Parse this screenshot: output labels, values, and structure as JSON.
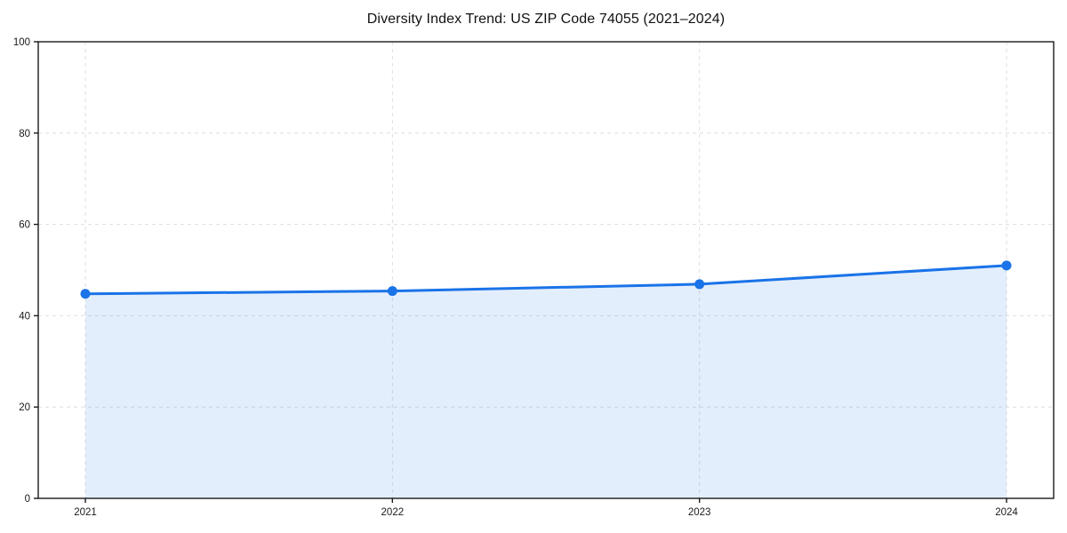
{
  "page": {
    "title": "Diversity Index Trend: US ZIP Code 74055 (2021–2024)"
  },
  "chart_data": {
    "type": "line",
    "title": "Diversity Index Trend: US ZIP Code 74055 (2021–2024)",
    "categories": [
      "2021",
      "2022",
      "2023",
      "2024"
    ],
    "series": [
      {
        "name": "Diversity Index",
        "values": [
          44.8,
          45.4,
          46.9,
          51.0
        ]
      }
    ],
    "xlabel": "",
    "ylabel": "",
    "ylim": [
      0,
      100
    ],
    "yticks": [
      0,
      20,
      40,
      60,
      80,
      100
    ],
    "grid": true,
    "grid_style": "dashed",
    "legend_position": "none",
    "area_fill": true,
    "marker": "circle",
    "colors": {
      "line": "#1a73e8",
      "marker": "#1a73e8",
      "area_fill": "rgba(26,115,232,0.12)",
      "grid": "#dedede",
      "spine": "#1a1a1a",
      "tick_text": "#1a1a1a",
      "background": "#ffffff"
    }
  }
}
